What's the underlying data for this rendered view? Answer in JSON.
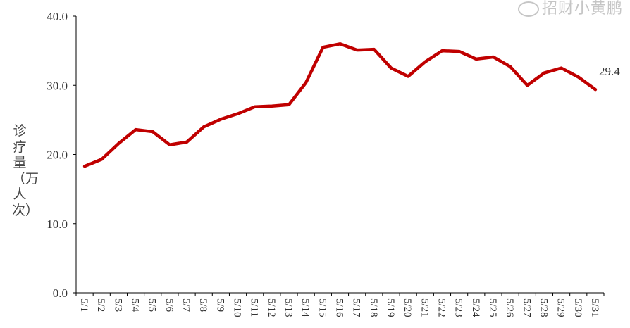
{
  "chart_data": {
    "type": "line",
    "title": "",
    "xlabel": "",
    "ylabel": "诊疗量（万人次）",
    "ylim": [
      0,
      40
    ],
    "yticks": [
      "0.0",
      "10.0",
      "20.0",
      "30.0",
      "40.0"
    ],
    "grid": false,
    "categories": [
      "5/1",
      "5/2",
      "5/3",
      "5/4",
      "5/5",
      "5/6",
      "5/7",
      "5/8",
      "5/9",
      "5/10",
      "5/11",
      "5/12",
      "5/13",
      "5/14",
      "5/15",
      "5/16",
      "5/17",
      "5/18",
      "5/19",
      "5/20",
      "5/21",
      "5/22",
      "5/23",
      "5/24",
      "5/25",
      "5/26",
      "5/27",
      "5/28",
      "5/29",
      "5/30",
      "5/31"
    ],
    "series": [
      {
        "values": [
          18.3,
          19.3,
          21.6,
          23.6,
          23.3,
          21.4,
          21.8,
          24.0,
          25.1,
          25.9,
          26.9,
          27.0,
          27.2,
          30.4,
          35.5,
          36.0,
          35.1,
          35.2,
          32.5,
          31.3,
          33.4,
          35.0,
          34.9,
          33.8,
          34.1,
          32.7,
          30.0,
          31.8,
          32.5,
          31.2,
          29.4
        ],
        "color": "#c00000"
      }
    ],
    "annotations": [
      {
        "category": "5/31",
        "text": "29.4"
      }
    ]
  },
  "watermark": "招财小黄鹏"
}
